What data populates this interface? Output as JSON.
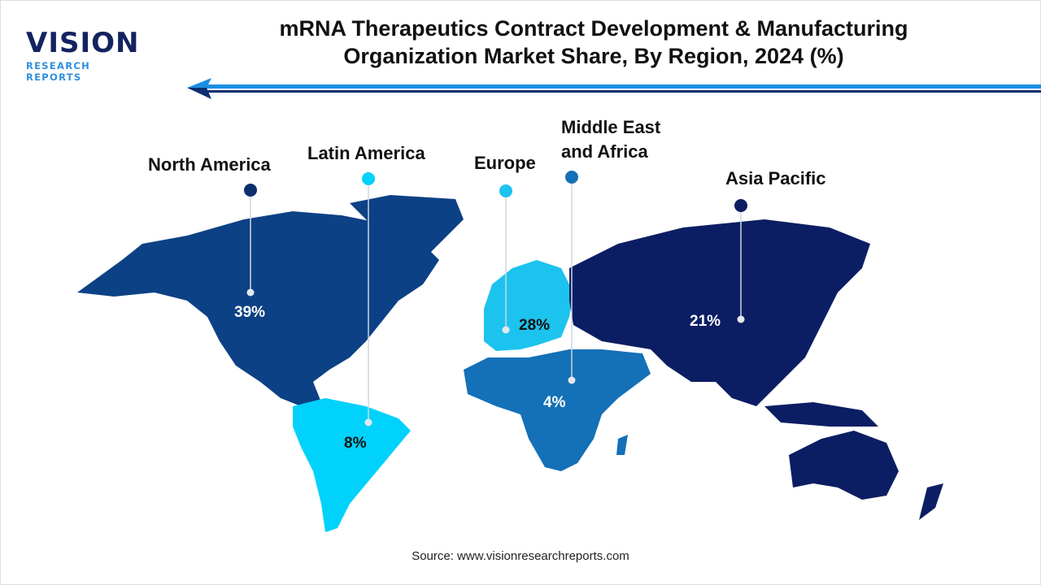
{
  "logo": {
    "main": "VISION",
    "sub": "RESEARCH REPORTS"
  },
  "title": "mRNA Therapeutics Contract Development & Manufacturing Organization Market Share, By Region, 2024 (%)",
  "source": "Source: www.visionresearchreports.com",
  "regions": [
    {
      "name": "North America",
      "share": "39%",
      "value": 39,
      "color": "#0c4185"
    },
    {
      "name": "Latin America",
      "share": "8%",
      "value": 8,
      "color": "#00d2fb"
    },
    {
      "name": "Europe",
      "share": "28%",
      "value": 28,
      "color": "#1cc3ee"
    },
    {
      "name": "Middle East and Africa",
      "share": "4%",
      "value": 4,
      "color": "#1470b7"
    },
    {
      "name": "Asia Pacific",
      "share": "21%",
      "value": 21,
      "color": "#0b1e63"
    }
  ],
  "chart_data": {
    "type": "map",
    "title": "mRNA Therapeutics Contract Development & Manufacturing Organization Market Share, By Region, 2024 (%)",
    "categories": [
      "North America",
      "Latin America",
      "Europe",
      "Middle East and Africa",
      "Asia Pacific"
    ],
    "values": [
      39,
      8,
      28,
      4,
      21
    ],
    "unit": "%"
  }
}
